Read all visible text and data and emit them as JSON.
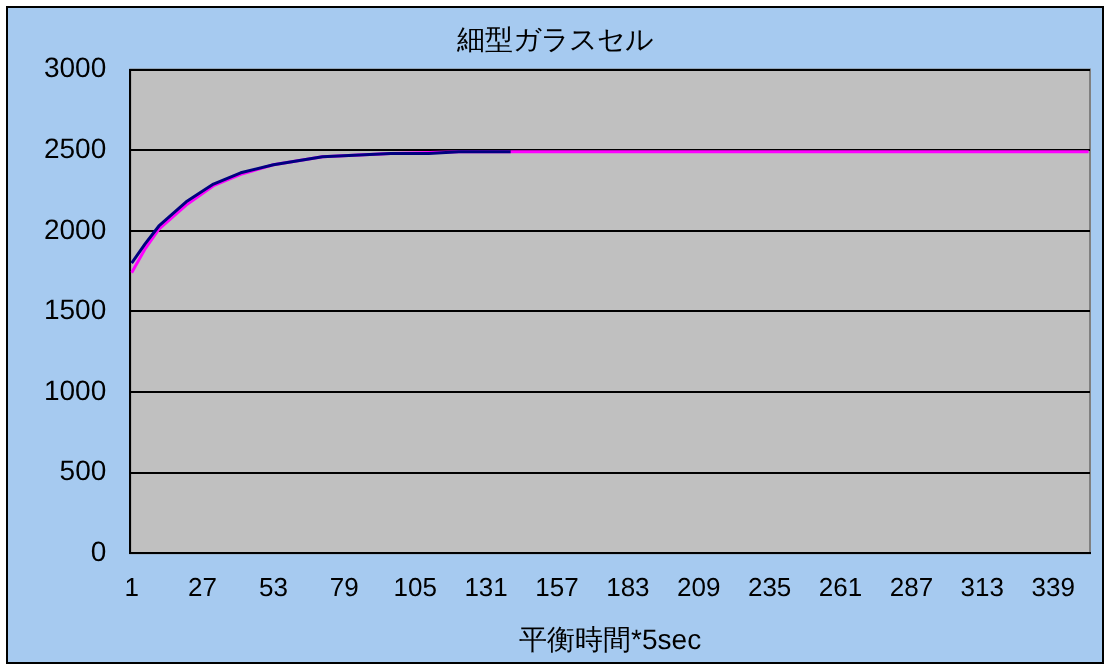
{
  "chart_data": {
    "type": "line",
    "title": "細型ガラスセル",
    "xlabel": "平衡時間*5sec",
    "xlim": [
      0.5,
      352.5
    ],
    "xticks": [
      1,
      27,
      53,
      79,
      105,
      131,
      157,
      183,
      209,
      235,
      261,
      287,
      313,
      339
    ],
    "ylim": [
      0,
      3000
    ],
    "yticks": [
      0,
      500,
      1000,
      1500,
      2000,
      2500,
      3000
    ],
    "grid": "y",
    "legend": false,
    "marker": "none",
    "series": [
      {
        "color": "#000080",
        "x": [
          1,
          6,
          11,
          21,
          31,
          41,
          53,
          71,
          96,
          110,
          121,
          140
        ],
        "values": [
          1800,
          1920,
          2030,
          2180,
          2290,
          2360,
          2410,
          2460,
          2480,
          2480,
          2490,
          2490
        ]
      },
      {
        "color": "#ff00ff",
        "x": [
          1,
          6,
          11,
          21,
          31,
          41,
          53,
          71,
          96,
          121,
          150,
          200,
          260,
          352
        ],
        "values": [
          1740,
          1890,
          2010,
          2160,
          2280,
          2350,
          2410,
          2460,
          2480,
          2490,
          2490,
          2490,
          2490,
          2490
        ]
      }
    ]
  }
}
